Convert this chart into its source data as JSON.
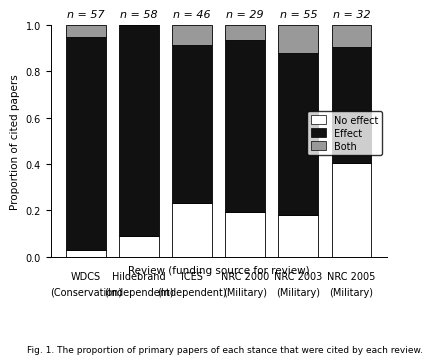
{
  "categories_line1": [
    "WDCS",
    "Hildebrand",
    "ICES",
    "NRC 2000",
    "NRC 2003",
    "NRC 2005"
  ],
  "categories_line2": [
    "(Conservation)",
    "(Independent)",
    "(Independent)",
    "(Military)",
    "(Military)",
    "(Military)"
  ],
  "n_labels": [
    "n = 57",
    "n = 58",
    "n = 46",
    "n = 29",
    "n = 55",
    "n = 32"
  ],
  "no_effect": [
    0.03,
    0.09,
    0.23,
    0.195,
    0.178,
    0.406
  ],
  "effect": [
    0.918,
    0.91,
    0.685,
    0.74,
    0.7,
    0.5
  ],
  "both": [
    0.052,
    0.0,
    0.085,
    0.065,
    0.122,
    0.094
  ],
  "colors": {
    "no_effect": "#ffffff",
    "effect": "#111111",
    "both": "#999999"
  },
  "legend_labels": [
    "No effect",
    "Effect",
    "Both"
  ],
  "ylabel": "Proportion of cited papers",
  "xlabel": "Review (funding source for review)",
  "figcaption": "Fig. 1. The proportion of primary papers of each stance that were cited by each review.",
  "ylim": [
    0,
    1
  ],
  "bar_width": 0.75,
  "background_color": "#ffffff",
  "label_fontsize": 7.5,
  "tick_fontsize": 7,
  "n_fontsize": 8,
  "legend_fontsize": 7,
  "caption_fontsize": 6.5
}
